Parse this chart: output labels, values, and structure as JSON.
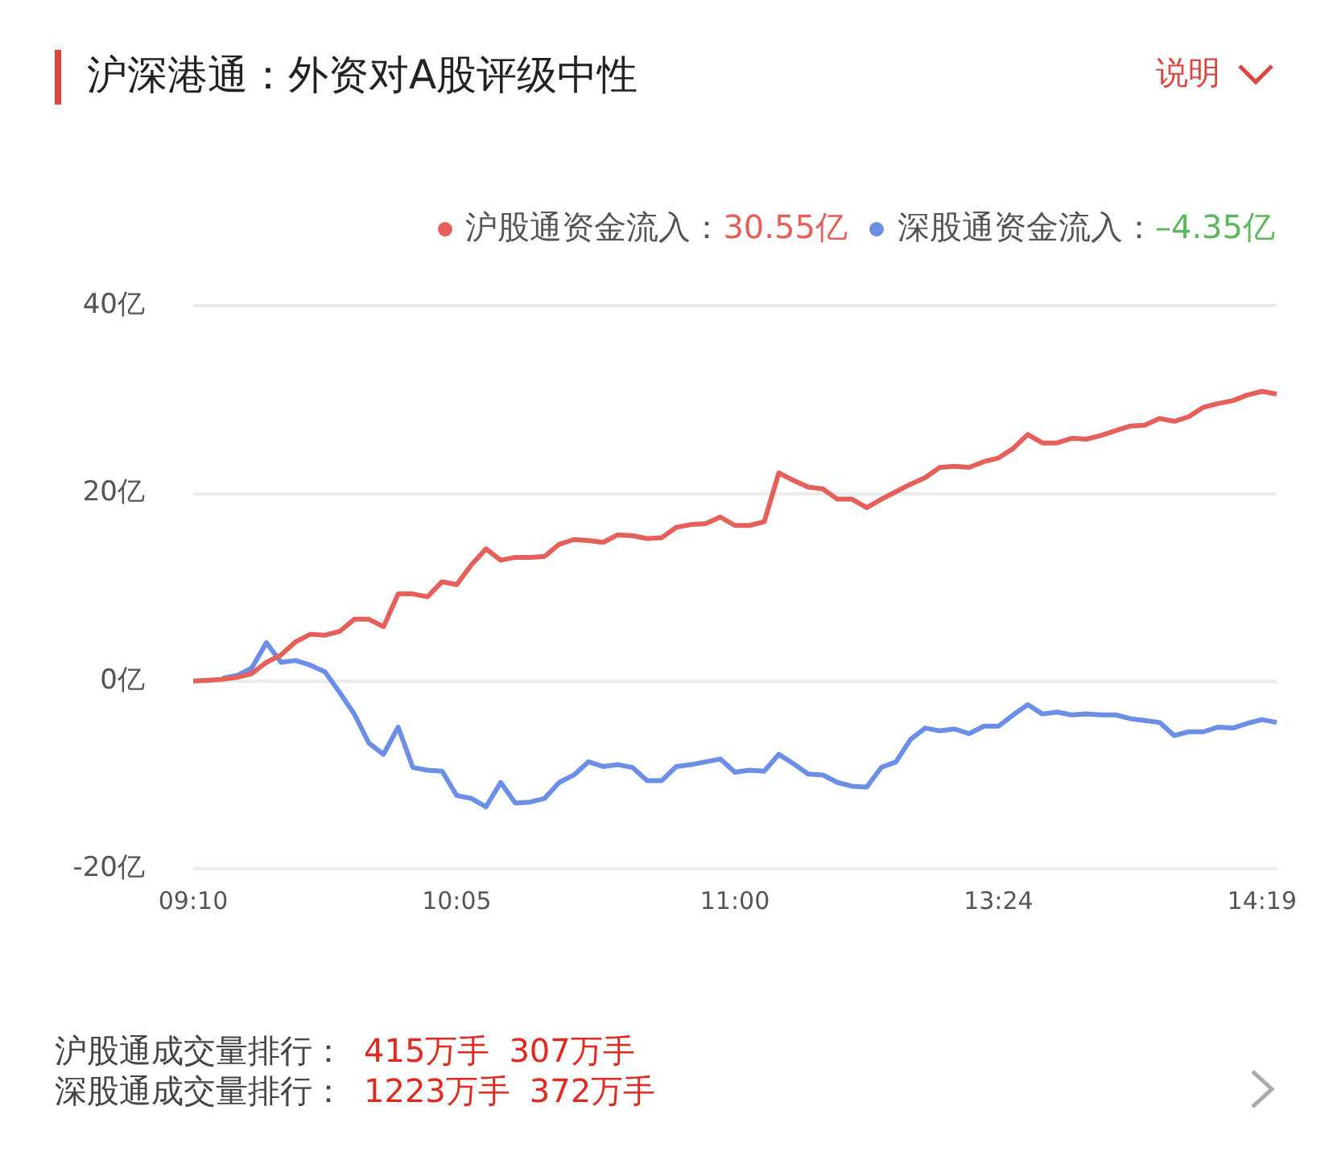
{
  "chart_data": {
    "type": "line",
    "title": "沪深港通：外资对A股评级中性",
    "categories": [
      "09:10",
      null,
      null,
      null,
      null,
      null,
      null,
      null,
      null,
      null,
      null,
      null,
      null,
      null,
      null,
      null,
      null,
      null,
      "10:05",
      null,
      null,
      null,
      null,
      null,
      null,
      null,
      null,
      null,
      null,
      null,
      null,
      null,
      null,
      null,
      null,
      null,
      null,
      "11:00",
      null,
      null,
      null,
      null,
      null,
      null,
      null,
      null,
      null,
      null,
      null,
      null,
      null,
      null,
      null,
      null,
      null,
      "13:24",
      null,
      null,
      null,
      null,
      null,
      null,
      null,
      null,
      null,
      null,
      null,
      null,
      null,
      null,
      null,
      null,
      null,
      "14:19",
      null
    ],
    "ylim": [
      -20,
      40
    ],
    "yticks": [
      {
        "value": -20,
        "label": "-20亿"
      },
      {
        "value": 0,
        "label": "0亿"
      },
      {
        "value": 20,
        "label": "20亿"
      },
      {
        "value": 40,
        "label": "40亿"
      }
    ],
    "grid": "y",
    "legend": "top right",
    "marker": "none",
    "line_style": "solid",
    "series": [
      {
        "name": "沪股通资金流入：",
        "color": "#e5605a",
        "values": [
          0,
          0.1,
          0.2,
          0.4,
          0.8,
          2.0,
          2.8,
          4.2,
          5.0,
          4.9,
          5.3,
          6.6,
          6.6,
          5.8,
          9.3,
          9.3,
          9.0,
          10.6,
          10.3,
          12.4,
          14.1,
          12.9,
          13.2,
          13.2,
          13.3,
          14.6,
          15.1,
          15.0,
          14.8,
          15.6,
          15.5,
          15.2,
          15.3,
          16.4,
          16.7,
          16.8,
          17.5,
          16.6,
          16.6,
          17.0,
          22.2,
          21.4,
          20.7,
          20.5,
          19.4,
          19.4,
          18.5,
          19.4,
          20.2,
          21.0,
          21.7,
          22.8,
          22.9,
          22.8,
          23.4,
          23.8,
          24.8,
          26.3,
          25.4,
          25.4,
          25.9,
          25.8,
          26.2,
          26.7,
          27.2,
          27.3,
          28.0,
          27.7,
          28.2,
          29.2,
          29.6,
          29.9,
          30.5,
          30.9,
          30.6
        ]
      },
      {
        "name": "深股通资金流入：",
        "color": "#6b8ee6",
        "values": [
          null,
          null,
          0.3,
          0.6,
          1.4,
          4.1,
          2.0,
          2.2,
          1.7,
          1.0,
          -1.2,
          -3.5,
          -6.6,
          -7.8,
          -4.9,
          -9.2,
          -9.5,
          -9.6,
          -12.2,
          -12.5,
          -13.4,
          -10.8,
          -13.0,
          -12.9,
          -12.5,
          -10.8,
          -10.0,
          -8.6,
          -9.1,
          -8.9,
          -9.2,
          -10.6,
          -10.6,
          -9.1,
          -8.9,
          -8.6,
          -8.3,
          -9.7,
          -9.5,
          -9.6,
          -7.8,
          -8.8,
          -9.9,
          -10.0,
          -10.8,
          -11.2,
          -11.3,
          -9.2,
          -8.6,
          -6.2,
          -5.0,
          -5.3,
          -5.1,
          -5.6,
          -4.8,
          -4.8,
          -3.6,
          -2.5,
          -3.5,
          -3.3,
          -3.6,
          -3.5,
          -3.6,
          -3.6,
          -4.0,
          -4.2,
          -4.4,
          -5.8,
          -5.4,
          -5.4,
          -4.9,
          -5.0,
          -4.5,
          -4.1,
          -4.4
        ]
      }
    ],
    "annotations": [
      "30.55亿",
      "–4.35亿",
      "说明",
      "沪股通成交量排行：",
      "415万手",
      "307万手",
      "深股通成交量排行：",
      "1223万手",
      "372万手"
    ]
  }
}
